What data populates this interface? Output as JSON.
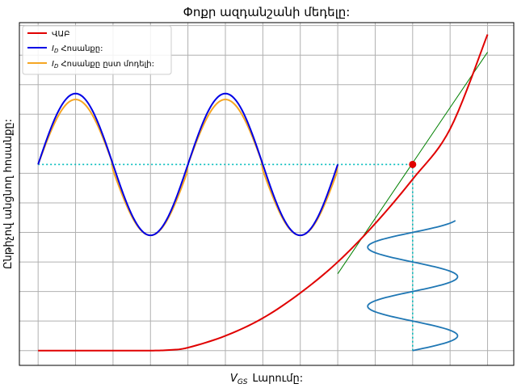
{
  "chart_data": {
    "type": "line",
    "title": "Փոքր ազդանշանի մեդելը:",
    "xlabel_main": "V",
    "xlabel_sub": "GS",
    "xlabel_rest": "Լարումը:",
    "ylabel": "Ընթիչով անցնող հոսանքը:",
    "xlim": [
      -0.5,
      12.7
    ],
    "ylim": [
      -0.5,
      11.1
    ],
    "grid": true,
    "legend_placement": "top-left",
    "colors": {
      "vac": "#e00000",
      "ideal": "#0000e6",
      "model": "#f5a623",
      "tangent": "#008000",
      "input": "#1f77b4",
      "guide": "#00bcbc",
      "point": "#e00000"
    },
    "legend": [
      {
        "label": "ՎԱԲ",
        "color_key": "vac"
      },
      {
        "label_main": "I",
        "label_sub": "D",
        "label_rest": " Հոսանքը:",
        "color_key": "ideal"
      },
      {
        "label_main": "I",
        "label_sub": "D",
        "label_rest": " Հոսանքը ըստ մոդելի:",
        "color_key": "model"
      }
    ],
    "series": [
      {
        "label": "ՎԱԲ",
        "color_key": "vac",
        "x": [
          0,
          1,
          2,
          3,
          3.5,
          4,
          5,
          6,
          7,
          8,
          9,
          10,
          11,
          12
        ],
        "y": [
          0,
          0,
          0,
          0,
          0.02,
          0.1,
          0.5,
          1.1,
          1.95,
          3.0,
          4.3,
          5.8,
          7.5,
          10.7
        ]
      }
    ],
    "ideal_wave": {
      "x_start": 0,
      "x_end": 8,
      "center": 6.3,
      "amplitude": 2.4,
      "period": 4
    },
    "model_wave": {
      "x_start": 0,
      "x_end": 8,
      "center": 6.3,
      "amplitude": 2.2,
      "period": 4,
      "offset": -0.2
    },
    "tangent_line": {
      "x": [
        8,
        12
      ],
      "y": [
        2.6,
        10.1
      ]
    },
    "q_point": {
      "x": 10,
      "y": 6.3
    },
    "guides": {
      "horizontal": {
        "x": [
          0,
          10
        ],
        "y": 6.3
      },
      "vertical": {
        "x": 10,
        "y": [
          0,
          6.3
        ]
      }
    },
    "input_wave": {
      "center_x": 10,
      "amplitude": 1.2,
      "y_start": 0,
      "y_end": 4.4,
      "period": 2
    }
  }
}
